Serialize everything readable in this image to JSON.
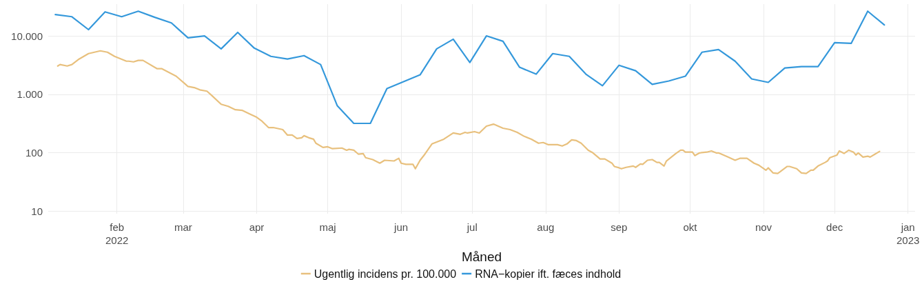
{
  "chart_data": {
    "type": "line",
    "xlabel": "Måned",
    "log": "y",
    "grid": true,
    "legend": "bottom",
    "line_style": "solid",
    "marker": "none",
    "xlim": [
      "2022-01-03",
      "2023-01-04"
    ],
    "xticks": [
      {
        "value": "2022-02-01",
        "label": "feb\n2022"
      },
      {
        "value": "2022-03-01",
        "label": "mar"
      },
      {
        "value": "2022-04-01",
        "label": "apr"
      },
      {
        "value": "2022-05-01",
        "label": "maj"
      },
      {
        "value": "2022-06-01",
        "label": "jun"
      },
      {
        "value": "2022-07-01",
        "label": "jul"
      },
      {
        "value": "2022-08-01",
        "label": "aug"
      },
      {
        "value": "2022-09-01",
        "label": "sep"
      },
      {
        "value": "2022-10-01",
        "label": "okt"
      },
      {
        "value": "2022-11-01",
        "label": "nov"
      },
      {
        "value": "2022-12-01",
        "label": "dec"
      },
      {
        "value": "2023-01-01",
        "label": "jan\n2023"
      }
    ],
    "ylim": [
      9,
      35000
    ],
    "yticks": [
      10,
      100,
      {
        "value": 1000,
        "label": "1.000"
      },
      {
        "value": 10000,
        "label": "10.000"
      }
    ],
    "series": [
      {
        "name": "Ugentlig incidens pr. 100.000",
        "color": "#e8c07d",
        "x": [
          "2022-01-07",
          "2022-01-08",
          "2022-01-11",
          "2022-01-13",
          "2022-01-16",
          "2022-01-20",
          "2022-01-25",
          "2022-01-28",
          "2022-01-31",
          "2022-02-05",
          "2022-02-06",
          "2022-02-08",
          "2022-02-10",
          "2022-02-12",
          "2022-02-18",
          "2022-02-20",
          "2022-02-26",
          "2022-03-02",
          "2022-03-03",
          "2022-03-06",
          "2022-03-08",
          "2022-03-11",
          "2022-03-13",
          "2022-03-17",
          "2022-03-20",
          "2022-03-23",
          "2022-03-26",
          "2022-03-29",
          "2022-04-01",
          "2022-04-03",
          "2022-04-06",
          "2022-04-08",
          "2022-04-12",
          "2022-04-14",
          "2022-04-16",
          "2022-04-18",
          "2022-04-20",
          "2022-04-21",
          "2022-04-23",
          "2022-04-25",
          "2022-04-26",
          "2022-04-29",
          "2022-05-01",
          "2022-05-03",
          "2022-05-07",
          "2022-05-09",
          "2022-05-10",
          "2022-05-12",
          "2022-05-14",
          "2022-05-16",
          "2022-05-17",
          "2022-05-20",
          "2022-05-23",
          "2022-05-25",
          "2022-05-29",
          "2022-05-31",
          "2022-06-01",
          "2022-06-03",
          "2022-06-06",
          "2022-06-07",
          "2022-06-09",
          "2022-06-11",
          "2022-06-14",
          "2022-06-19",
          "2022-06-23",
          "2022-06-26",
          "2022-06-28",
          "2022-06-29",
          "2022-07-02",
          "2022-07-04",
          "2022-07-07",
          "2022-07-10",
          "2022-07-11",
          "2022-07-14",
          "2022-07-17",
          "2022-07-20",
          "2022-07-23",
          "2022-07-26",
          "2022-07-29",
          "2022-07-31",
          "2022-08-02",
          "2022-08-06",
          "2022-08-08",
          "2022-08-10",
          "2022-08-12",
          "2022-08-14",
          "2022-08-16",
          "2022-08-19",
          "2022-08-21",
          "2022-08-24",
          "2022-08-26",
          "2022-08-29",
          "2022-08-30",
          "2022-09-01",
          "2022-09-02",
          "2022-09-04",
          "2022-09-07",
          "2022-09-08",
          "2022-09-10",
          "2022-09-11",
          "2022-09-13",
          "2022-09-15",
          "2022-09-17",
          "2022-09-18",
          "2022-09-20",
          "2022-09-21",
          "2022-09-25",
          "2022-09-27",
          "2022-09-28",
          "2022-09-29",
          "2022-10-02",
          "2022-10-03",
          "2022-10-05",
          "2022-10-08",
          "2022-10-10",
          "2022-10-12",
          "2022-10-13",
          "2022-10-17",
          "2022-10-20",
          "2022-10-22",
          "2022-10-25",
          "2022-10-28",
          "2022-10-30",
          "2022-11-02",
          "2022-11-03",
          "2022-11-05",
          "2022-11-07",
          "2022-11-08",
          "2022-11-11",
          "2022-11-12",
          "2022-11-15",
          "2022-11-17",
          "2022-11-19",
          "2022-11-21",
          "2022-11-22",
          "2022-11-24",
          "2022-11-27",
          "2022-11-28",
          "2022-11-29",
          "2022-12-02",
          "2022-12-03",
          "2022-12-05",
          "2022-12-07",
          "2022-12-09",
          "2022-12-10",
          "2022-12-11",
          "2022-12-13",
          "2022-12-15",
          "2022-12-16",
          "2022-12-18",
          "2022-12-20"
        ],
        "values": [
          3050,
          3230,
          3050,
          3230,
          4010,
          4970,
          5540,
          5250,
          4460,
          3690,
          3690,
          3590,
          3800,
          3800,
          2740,
          2740,
          2040,
          1480,
          1360,
          1290,
          1190,
          1130,
          958,
          674,
          622,
          544,
          529,
          462,
          404,
          353,
          269,
          269,
          248,
          200,
          200,
          175,
          180,
          195,
          180,
          170,
          145,
          123,
          126,
          117,
          120,
          110,
          114,
          110,
          94,
          96,
          82,
          76,
          66,
          74,
          72,
          80,
          66,
          63,
          63,
          53,
          74,
          94,
          141,
          170,
          217,
          206,
          223,
          217,
          229,
          217,
          284,
          308,
          296,
          262,
          248,
          223,
          190,
          170,
          145,
          149,
          137,
          137,
          130,
          141,
          166,
          161,
          145,
          110,
          99,
          78,
          78,
          66,
          58,
          55,
          53,
          56,
          59,
          56,
          64,
          63,
          74,
          76,
          68,
          68,
          59,
          72,
          97,
          110,
          110,
          102,
          102,
          89,
          99,
          102,
          107,
          99,
          99,
          84,
          74,
          80,
          80,
          66,
          61,
          50,
          55,
          45,
          44,
          47,
          58,
          58,
          53,
          45,
          44,
          50,
          50,
          59,
          68,
          72,
          82,
          91,
          107,
          97,
          110,
          102,
          91,
          99,
          84,
          87,
          84,
          94,
          105
        ]
      },
      {
        "name": "RNA−kopier ift. fæces indhold",
        "color": "#3498db",
        "x": [
          "2022-01-06",
          "2022-01-13",
          "2022-01-20",
          "2022-01-27",
          "2022-02-03",
          "2022-02-10",
          "2022-02-17",
          "2022-02-24",
          "2022-03-03",
          "2022-03-10",
          "2022-03-17",
          "2022-03-24",
          "2022-03-31",
          "2022-04-07",
          "2022-04-14",
          "2022-04-21",
          "2022-04-28",
          "2022-05-05",
          "2022-05-12",
          "2022-05-19",
          "2022-05-26",
          "2022-06-02",
          "2022-06-09",
          "2022-06-16",
          "2022-06-23",
          "2022-06-30",
          "2022-07-07",
          "2022-07-14",
          "2022-07-21",
          "2022-07-28",
          "2022-08-04",
          "2022-08-11",
          "2022-08-18",
          "2022-08-25",
          "2022-09-01",
          "2022-09-08",
          "2022-09-15",
          "2022-09-22",
          "2022-09-29",
          "2022-10-06",
          "2022-10-13",
          "2022-10-20",
          "2022-10-27",
          "2022-11-03",
          "2022-11-10",
          "2022-11-17",
          "2022-11-24",
          "2022-12-01",
          "2022-12-08",
          "2022-12-15",
          "2022-12-22"
        ],
        "values": [
          23200,
          21300,
          12800,
          25800,
          21300,
          26500,
          20800,
          16700,
          9250,
          10000,
          6000,
          11500,
          6170,
          4460,
          4010,
          4590,
          3230,
          640,
          317,
          317,
          1250,
          1640,
          2150,
          6000,
          8770,
          3500,
          10000,
          8080,
          2900,
          2210,
          4970,
          4460,
          2210,
          1400,
          3140,
          2530,
          1480,
          1690,
          2040,
          5250,
          5850,
          3690,
          1830,
          1600,
          2820,
          2980,
          2980,
          7650,
          7450,
          26500,
          15400
        ]
      }
    ]
  }
}
